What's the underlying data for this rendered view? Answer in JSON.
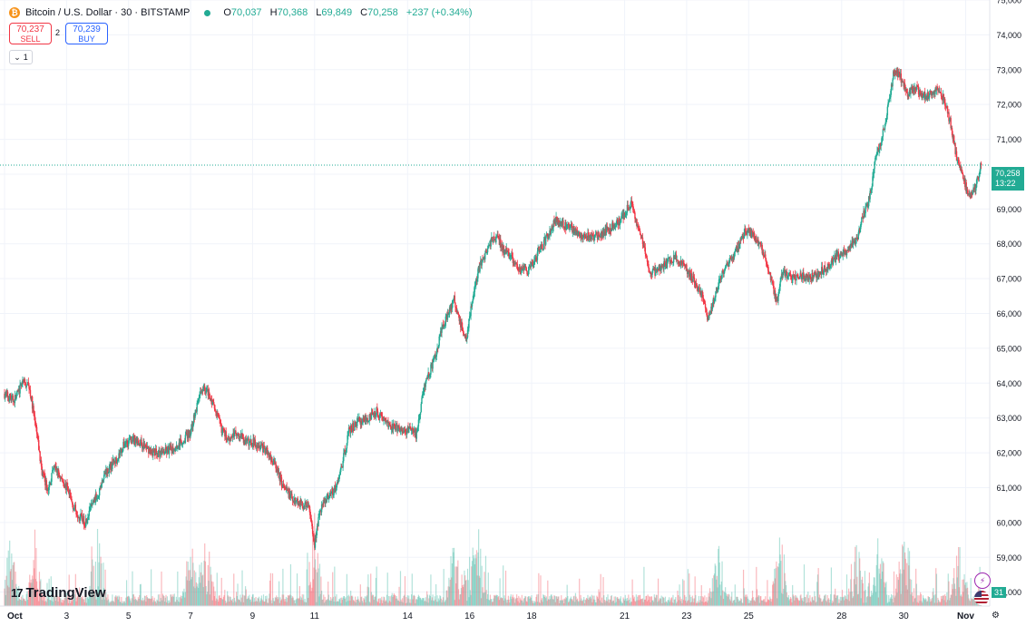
{
  "header": {
    "coin_symbol": "₿",
    "title": "Bitcoin / U.S. Dollar · 30 · BITSTAMP",
    "ohlc": {
      "o_label": "O",
      "o_value": "70,037",
      "h_label": "H",
      "h_value": "70,368",
      "l_label": "L",
      "l_value": "69,849",
      "c_label": "C",
      "c_value": "70,258",
      "change": "+237 (+0.34%)"
    }
  },
  "trade": {
    "sell_price": "70,237",
    "sell_label": "SELL",
    "spread": "2",
    "buy_price": "70,239",
    "buy_label": "BUY"
  },
  "indicators_toggle": {
    "count": "1",
    "icon": "chevron-down-icon"
  },
  "brand": {
    "name": "TradingView",
    "mark": "17"
  },
  "last_price": {
    "value": "70,258",
    "countdown": "13:22"
  },
  "event_badge": {
    "count": "31"
  },
  "colors": {
    "up": "#22ab94",
    "down": "#f23645",
    "grid": "#f0f3fa",
    "text": "#131722"
  },
  "chart_data": {
    "type": "candlestick",
    "interval": "30",
    "ylim": [
      57600,
      75000
    ],
    "y_ticks": [
      58000,
      59000,
      60000,
      61000,
      62000,
      63000,
      64000,
      65000,
      66000,
      67000,
      68000,
      69000,
      70000,
      71000,
      72000,
      73000,
      74000,
      75000
    ],
    "y_tick_labels": [
      "58,000",
      "59,000",
      "60,000",
      "61,000",
      "62,000",
      "63,000",
      "64,000",
      "65,000",
      "66,000",
      "67,000",
      "68,000",
      "69,000",
      "71,000",
      "72,000",
      "73,000",
      "74,000",
      "75,000"
    ],
    "x_tick_labels": [
      "Oct",
      "3",
      "5",
      "7",
      "9",
      "11",
      "14",
      "16",
      "18",
      "21",
      "23",
      "25",
      "28",
      "30",
      "Nov"
    ],
    "x_tick_days": [
      0,
      2,
      4,
      6,
      8,
      10,
      13,
      15,
      17,
      20,
      22,
      24,
      27,
      29,
      31
    ],
    "x_range_days": [
      0,
      31.6
    ],
    "last_close": 70258,
    "price_path": [
      [
        0.0,
        63700
      ],
      [
        0.3,
        63500
      ],
      [
        0.6,
        64000
      ],
      [
        0.8,
        63900
      ],
      [
        1.0,
        62800
      ],
      [
        1.2,
        61500
      ],
      [
        1.4,
        60900
      ],
      [
        1.6,
        61600
      ],
      [
        1.8,
        61300
      ],
      [
        2.0,
        61000
      ],
      [
        2.2,
        60500
      ],
      [
        2.4,
        60200
      ],
      [
        2.6,
        60000
      ],
      [
        2.8,
        60500
      ],
      [
        3.0,
        60800
      ],
      [
        3.3,
        61500
      ],
      [
        3.6,
        61800
      ],
      [
        3.9,
        62300
      ],
      [
        4.2,
        62400
      ],
      [
        4.5,
        62200
      ],
      [
        4.8,
        62000
      ],
      [
        5.1,
        62000
      ],
      [
        5.4,
        62100
      ],
      [
        5.7,
        62300
      ],
      [
        6.0,
        62600
      ],
      [
        6.2,
        63300
      ],
      [
        6.4,
        63900
      ],
      [
        6.6,
        63700
      ],
      [
        6.8,
        63200
      ],
      [
        7.0,
        62700
      ],
      [
        7.2,
        62400
      ],
      [
        7.5,
        62600
      ],
      [
        7.8,
        62300
      ],
      [
        8.1,
        62300
      ],
      [
        8.4,
        62100
      ],
      [
        8.7,
        61700
      ],
      [
        9.0,
        61000
      ],
      [
        9.3,
        60700
      ],
      [
        9.6,
        60500
      ],
      [
        9.8,
        60500
      ],
      [
        10.0,
        59400
      ],
      [
        10.2,
        60400
      ],
      [
        10.4,
        60700
      ],
      [
        10.7,
        61000
      ],
      [
        10.9,
        61700
      ],
      [
        11.1,
        62600
      ],
      [
        11.4,
        62900
      ],
      [
        11.7,
        63000
      ],
      [
        12.0,
        63200
      ],
      [
        12.3,
        62900
      ],
      [
        12.6,
        62700
      ],
      [
        12.9,
        62600
      ],
      [
        13.1,
        62700
      ],
      [
        13.3,
        62500
      ],
      [
        13.5,
        63800
      ],
      [
        13.7,
        64300
      ],
      [
        13.9,
        64800
      ],
      [
        14.1,
        65500
      ],
      [
        14.3,
        66000
      ],
      [
        14.5,
        66400
      ],
      [
        14.7,
        65700
      ],
      [
        14.9,
        65300
      ],
      [
        15.1,
        66400
      ],
      [
        15.3,
        67300
      ],
      [
        15.5,
        67700
      ],
      [
        15.7,
        68100
      ],
      [
        15.9,
        68200
      ],
      [
        16.1,
        67800
      ],
      [
        16.3,
        67700
      ],
      [
        16.6,
        67300
      ],
      [
        16.9,
        67200
      ],
      [
        17.2,
        67700
      ],
      [
        17.5,
        68200
      ],
      [
        17.8,
        68700
      ],
      [
        18.1,
        68500
      ],
      [
        18.4,
        68400
      ],
      [
        18.7,
        68200
      ],
      [
        19.0,
        68200
      ],
      [
        19.3,
        68300
      ],
      [
        19.6,
        68500
      ],
      [
        19.9,
        68700
      ],
      [
        20.2,
        69200
      ],
      [
        20.4,
        68500
      ],
      [
        20.6,
        68000
      ],
      [
        20.8,
        67200
      ],
      [
        21.0,
        67200
      ],
      [
        21.3,
        67400
      ],
      [
        21.6,
        67600
      ],
      [
        21.9,
        67400
      ],
      [
        22.2,
        67000
      ],
      [
        22.5,
        66500
      ],
      [
        22.7,
        65800
      ],
      [
        22.9,
        66500
      ],
      [
        23.1,
        67000
      ],
      [
        23.3,
        67400
      ],
      [
        23.6,
        67800
      ],
      [
        23.9,
        68400
      ],
      [
        24.2,
        68200
      ],
      [
        24.5,
        67700
      ],
      [
        24.7,
        67100
      ],
      [
        24.9,
        66300
      ],
      [
        25.1,
        67200
      ],
      [
        25.4,
        67000
      ],
      [
        25.7,
        67100
      ],
      [
        26.0,
        67000
      ],
      [
        26.3,
        67200
      ],
      [
        26.6,
        67400
      ],
      [
        26.9,
        67700
      ],
      [
        27.2,
        67800
      ],
      [
        27.5,
        68200
      ],
      [
        27.7,
        68800
      ],
      [
        27.9,
        69300
      ],
      [
        28.1,
        70500
      ],
      [
        28.3,
        71000
      ],
      [
        28.5,
        72000
      ],
      [
        28.7,
        73000
      ],
      [
        28.9,
        72800
      ],
      [
        29.1,
        72300
      ],
      [
        29.4,
        72500
      ],
      [
        29.7,
        72200
      ],
      [
        30.0,
        72400
      ],
      [
        30.3,
        72200
      ],
      [
        30.5,
        71500
      ],
      [
        30.7,
        70500
      ],
      [
        30.9,
        70000
      ],
      [
        31.1,
        69300
      ],
      [
        31.3,
        69600
      ],
      [
        31.5,
        70258
      ]
    ],
    "volume": {
      "baseline": "bottom",
      "spikes_at_days": [
        0.2,
        1.0,
        3.0,
        6.0,
        6.5,
        10.0,
        14.5,
        15.0,
        15.3,
        23.0,
        25.0,
        27.5,
        28.2,
        29.0,
        30.8
      ]
    }
  }
}
